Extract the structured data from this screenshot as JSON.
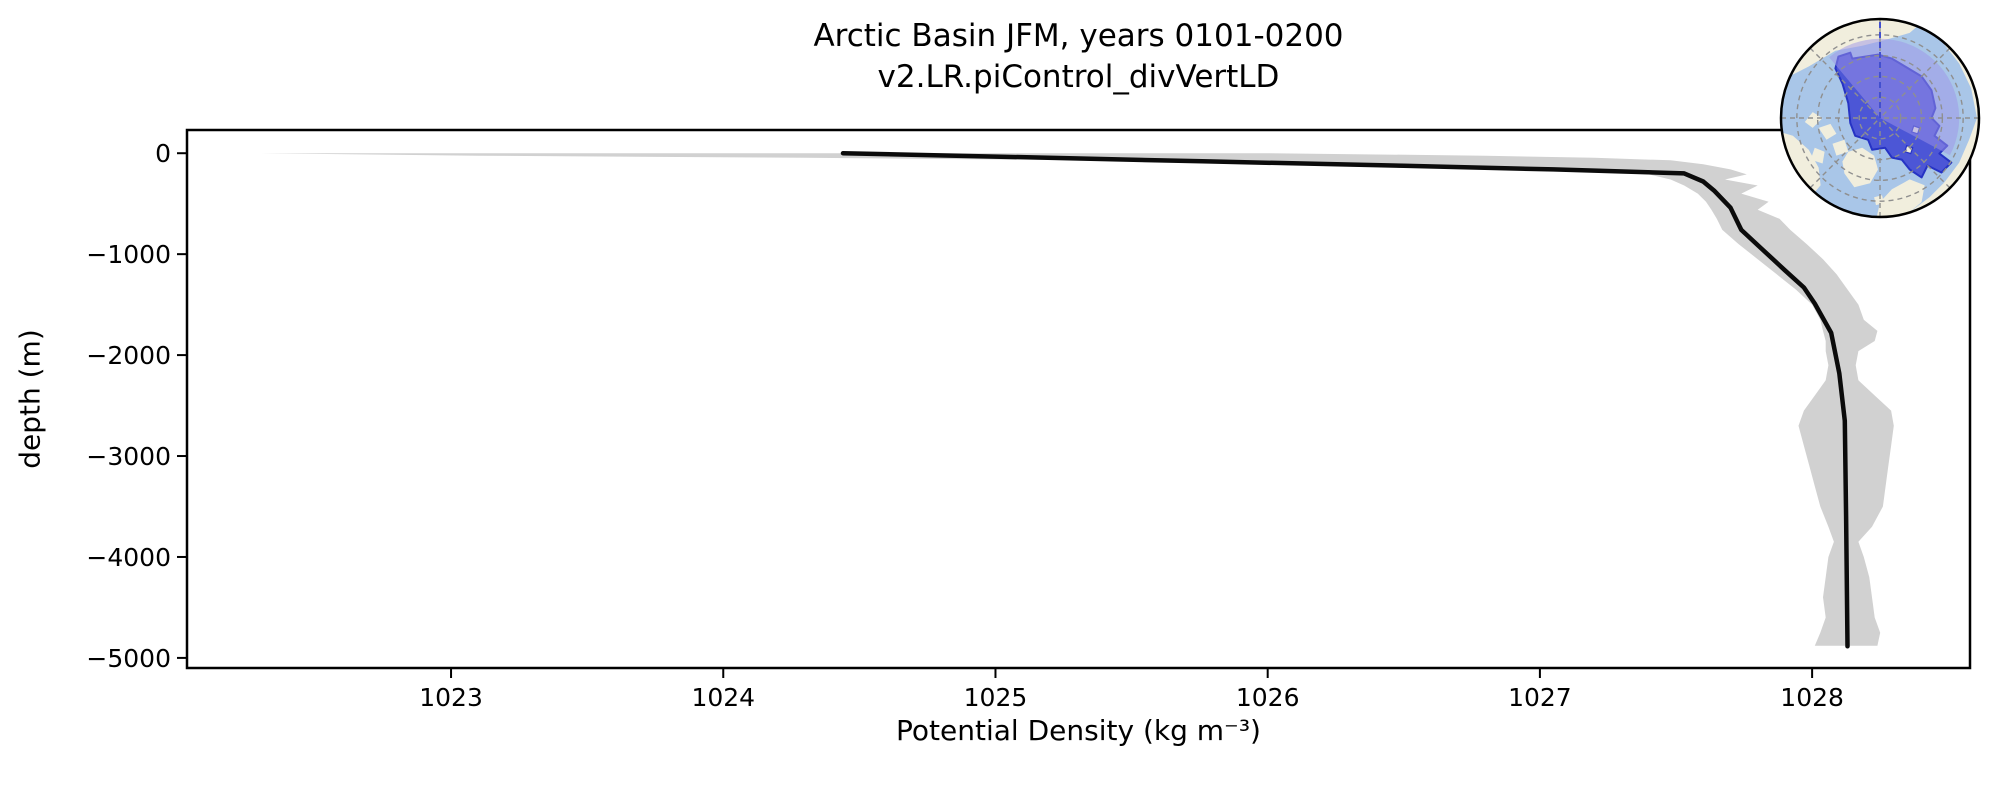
{
  "title": {
    "line1": "Arctic Basin JFM, years 0101-0200",
    "line2": "v2.LR.piControl_divVertLD"
  },
  "axes": {
    "xlabel": "Potential Density (kg m⁻³)",
    "ylabel": "depth (m)"
  },
  "colors": {
    "background": "#ffffff",
    "curve": "#0b0b0b",
    "band": "#d1d1d1",
    "axes_frame": "#000000",
    "tick_text": "#000000"
  },
  "chart_data": {
    "type": "line",
    "title": "Arctic Basin JFM, years 0101-0200 — v2.LR.piControl_divVertLD",
    "xlabel": "Potential Density (kg m⁻³)",
    "ylabel": "depth (m)",
    "xlim": [
      1022.03,
      1028.58
    ],
    "ylim": [
      -5100,
      230
    ],
    "xticks": {
      "values": [
        1023,
        1024,
        1025,
        1026,
        1027,
        1028
      ],
      "labels": [
        "1023",
        "1024",
        "1025",
        "1026",
        "1027",
        "1028"
      ]
    },
    "yticks": {
      "values": [
        0,
        -1000,
        -2000,
        -3000,
        -4000,
        -5000
      ],
      "labels": [
        "0",
        "−1000",
        "−2000",
        "−3000",
        "−4000",
        "−5000"
      ]
    },
    "grid": false,
    "legend": null,
    "series": [
      {
        "name": "mean-potential-density-profile",
        "points_depth_density": [
          [
            0,
            1024.44
          ],
          [
            -35,
            1025.02
          ],
          [
            -80,
            1025.76
          ],
          [
            -125,
            1026.5
          ],
          [
            -160,
            1027.05
          ],
          [
            -200,
            1027.53
          ],
          [
            -280,
            1027.6
          ],
          [
            -370,
            1027.64
          ],
          [
            -540,
            1027.7
          ],
          [
            -760,
            1027.74
          ],
          [
            -960,
            1027.82
          ],
          [
            -1160,
            1027.9
          ],
          [
            -1330,
            1027.97
          ],
          [
            -1490,
            1028.01
          ],
          [
            -1780,
            1028.07
          ],
          [
            -2180,
            1028.1
          ],
          [
            -2650,
            1028.12
          ],
          [
            -3600,
            1028.125
          ],
          [
            -4885,
            1028.13
          ]
        ]
      }
    ],
    "band": {
      "name": "spread-band",
      "points_depth_lo_hi": [
        [
          0,
          1022.3,
          1026.0
        ],
        [
          -25,
          1023.1,
          1026.8
        ],
        [
          -45,
          1024.3,
          1027.2
        ],
        [
          -70,
          1025.4,
          1027.48
        ],
        [
          -110,
          1026.3,
          1027.6
        ],
        [
          -160,
          1027.0,
          1027.7
        ],
        [
          -210,
          1027.4,
          1027.76
        ],
        [
          -260,
          1027.48,
          1027.68
        ],
        [
          -320,
          1027.53,
          1027.8
        ],
        [
          -400,
          1027.58,
          1027.74
        ],
        [
          -480,
          1027.61,
          1027.84
        ],
        [
          -560,
          1027.63,
          1027.8
        ],
        [
          -650,
          1027.65,
          1027.88
        ],
        [
          -760,
          1027.67,
          1027.92
        ],
        [
          -900,
          1027.73,
          1027.98
        ],
        [
          -1050,
          1027.8,
          1028.04
        ],
        [
          -1200,
          1027.87,
          1028.09
        ],
        [
          -1350,
          1027.94,
          1028.13
        ],
        [
          -1500,
          1028.0,
          1028.17
        ],
        [
          -1650,
          1028.03,
          1028.19
        ],
        [
          -1760,
          1028.04,
          1028.24
        ],
        [
          -1860,
          1028.05,
          1028.23
        ],
        [
          -1960,
          1028.05,
          1028.17
        ],
        [
          -2100,
          1028.06,
          1028.16
        ],
        [
          -2250,
          1028.05,
          1028.17
        ],
        [
          -2400,
          1028.01,
          1028.23
        ],
        [
          -2550,
          1027.97,
          1028.29
        ],
        [
          -2700,
          1027.95,
          1028.3
        ],
        [
          -2900,
          1027.97,
          1028.29
        ],
        [
          -3100,
          1027.99,
          1028.28
        ],
        [
          -3300,
          1028.01,
          1028.27
        ],
        [
          -3500,
          1028.03,
          1028.26
        ],
        [
          -3700,
          1028.06,
          1028.22
        ],
        [
          -3850,
          1028.08,
          1028.17
        ],
        [
          -4000,
          1028.06,
          1028.19
        ],
        [
          -4200,
          1028.05,
          1028.21
        ],
        [
          -4400,
          1028.04,
          1028.22
        ],
        [
          -4600,
          1028.05,
          1028.23
        ],
        [
          -4750,
          1028.03,
          1028.25
        ],
        [
          -4880,
          1028.01,
          1028.24
        ]
      ]
    }
  },
  "inset_map": {
    "kind": "north-polar-stereographic",
    "highlight_region": "Arctic Basin",
    "colors": {
      "ocean": "#a9c6e8",
      "land": "#f1eedd",
      "basin_fill": "#4c56d6",
      "basin_edge": "#2633c4",
      "sector_overlay": "#9d94e8",
      "graticule": "#8f8f8f",
      "meridian": "#4350cf",
      "rim": "#000000"
    }
  }
}
